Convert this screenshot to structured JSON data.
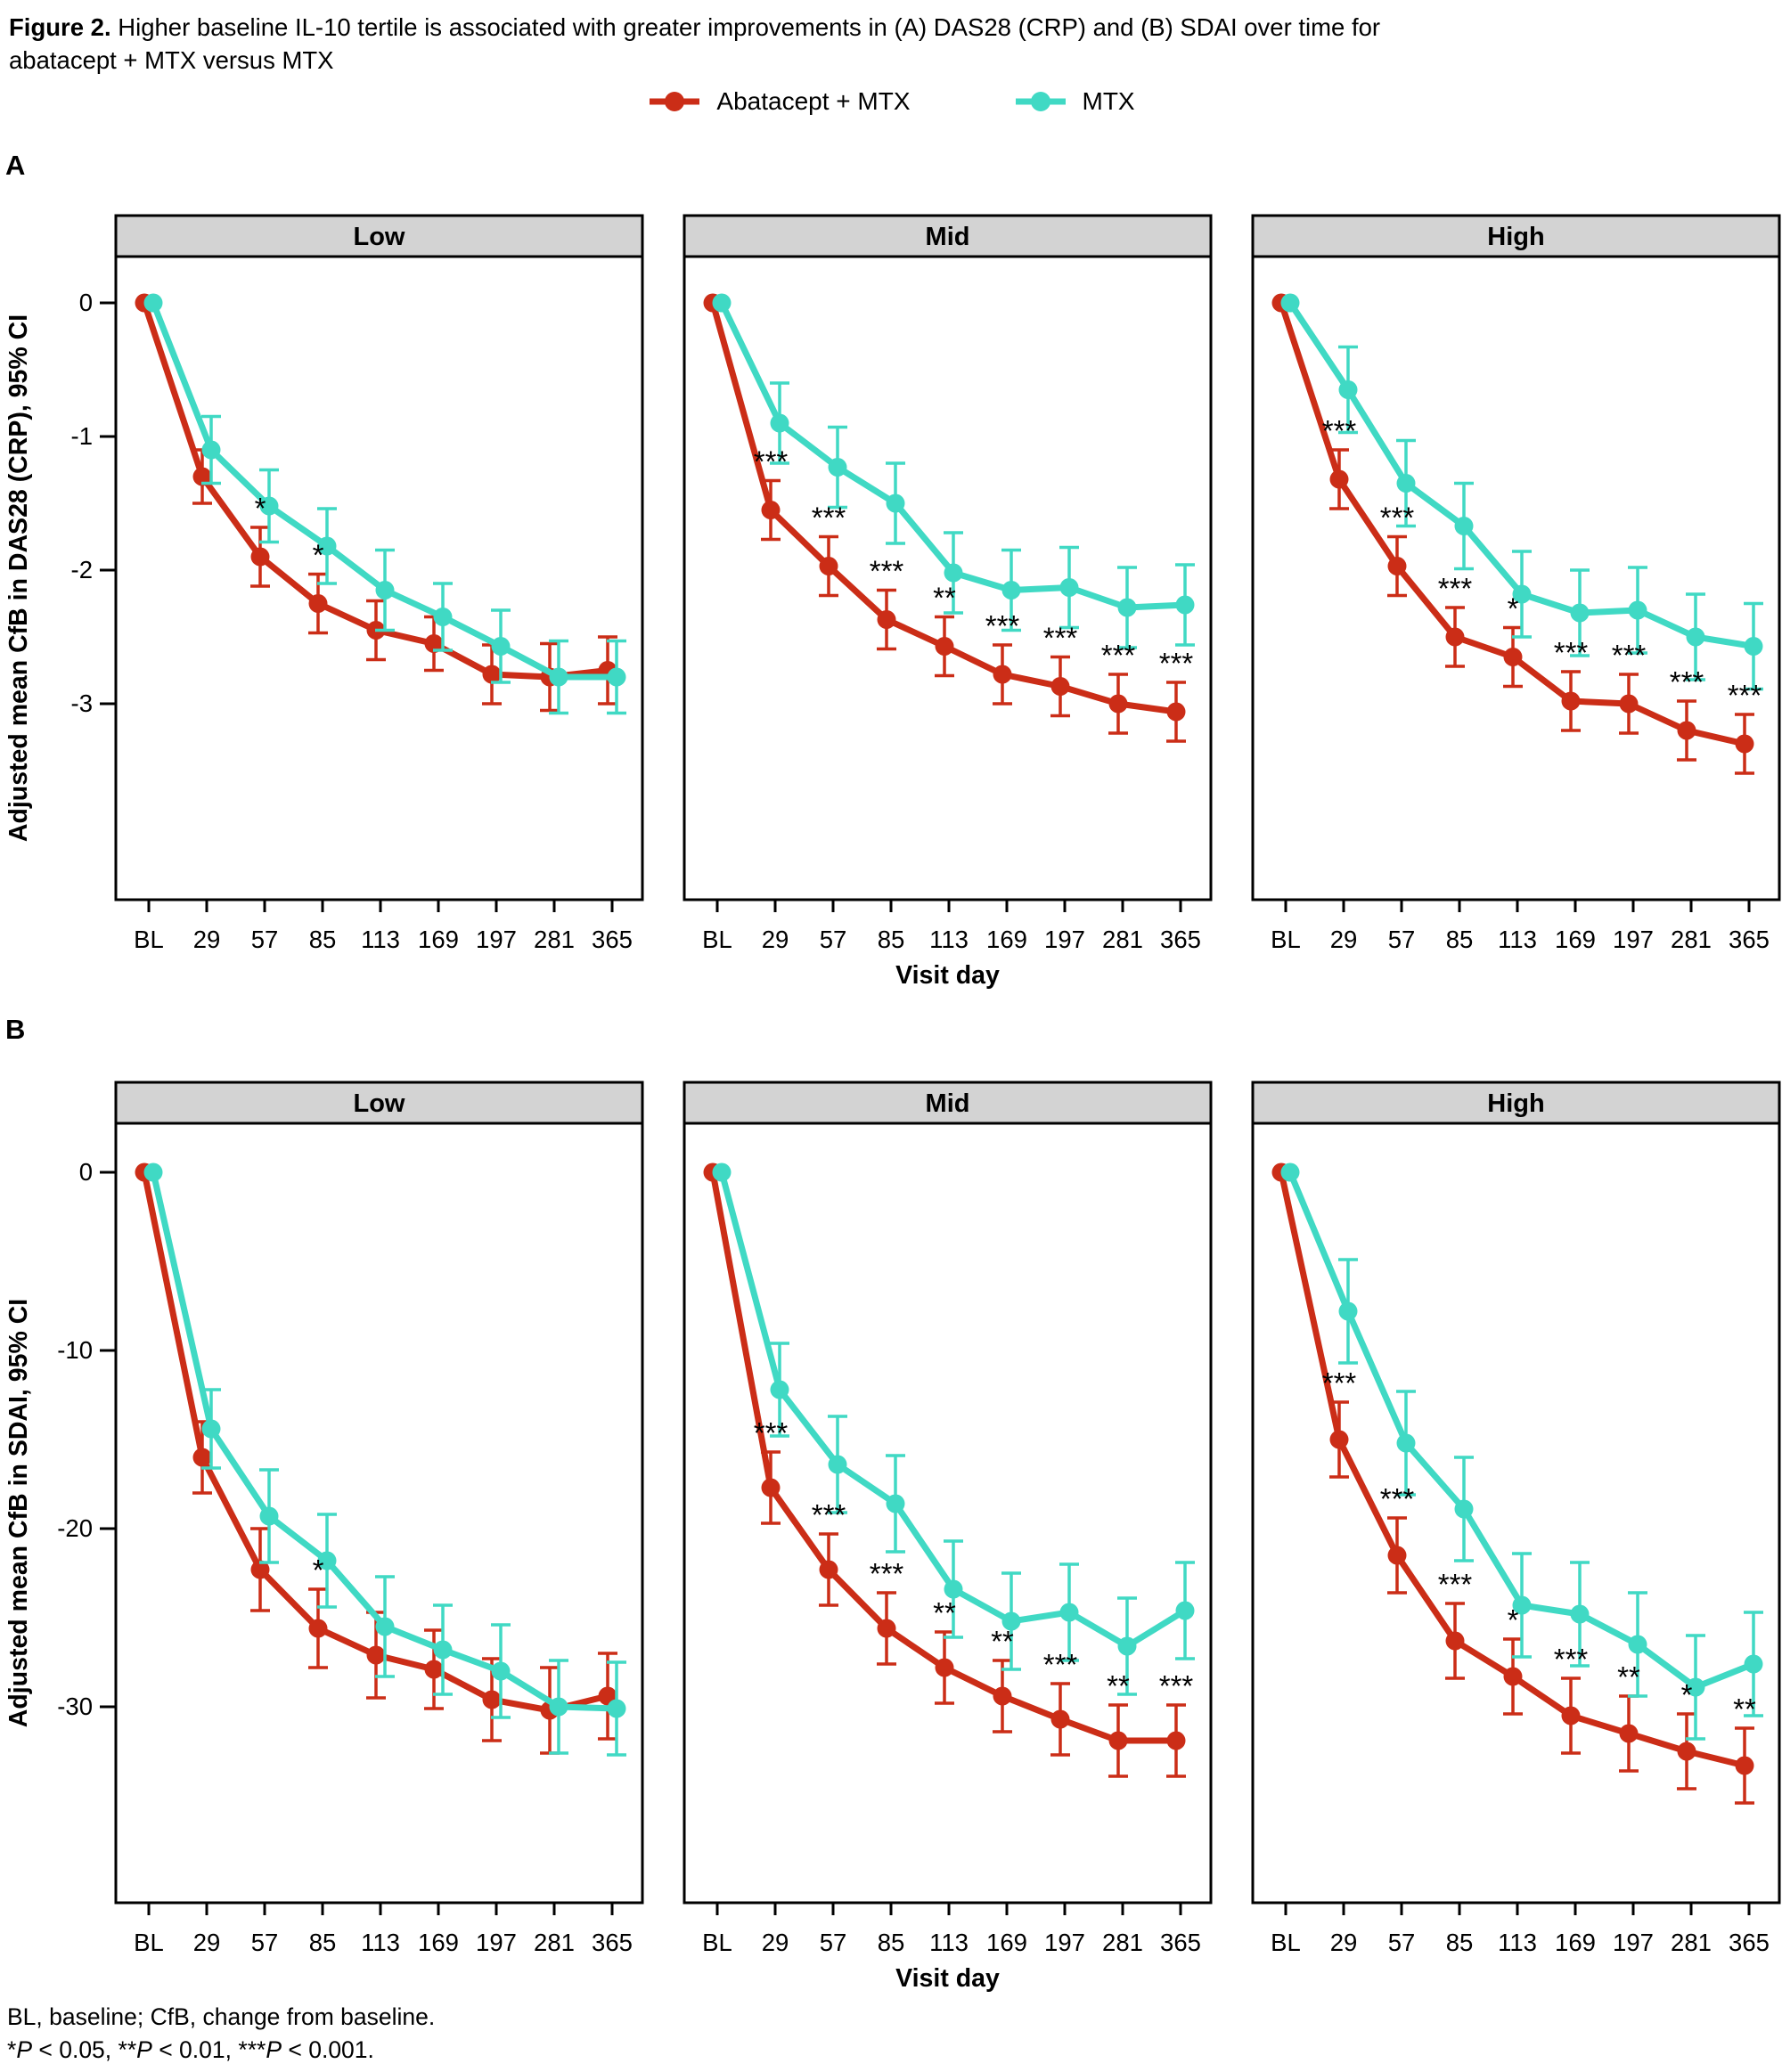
{
  "title": {
    "prefix": "Figure 2.",
    "text": " Higher baseline IL-10 tertile is associated with greater improvements in (A) DAS28 (CRP) and (B) SDAI over time for",
    "line2": "abatacept + MTX versus MTX"
  },
  "legend": {
    "items": [
      {
        "label": "Abatacept + MTX",
        "color": "#cb2d17"
      },
      {
        "label": "MTX",
        "color": "#40d9c4"
      }
    ]
  },
  "colors": {
    "abatacept": "#cb2d17",
    "mtx": "#40d9c4",
    "strip_fill": "#d3d3d3",
    "frame": "#000000"
  },
  "footnote": {
    "line1": "BL, baseline; CfB, change from baseline.",
    "line2_segments": [
      {
        "t": "*",
        "italic": false
      },
      {
        "t": "P",
        "italic": true
      },
      {
        "t": " < 0.05, ",
        "italic": false
      },
      {
        "t": "**",
        "italic": false
      },
      {
        "t": "P",
        "italic": true
      },
      {
        "t": " < 0.01, ",
        "italic": false
      },
      {
        "t": "***",
        "italic": false
      },
      {
        "t": "P",
        "italic": true
      },
      {
        "t": " < 0.001.",
        "italic": false
      }
    ]
  },
  "chart_data": [
    {
      "panel": "A",
      "type": "line",
      "ylabel": "Adjusted mean CfB in DAS28 (CRP), 95% CI",
      "xlabel": "Visit day",
      "categories": [
        "BL",
        "29",
        "57",
        "85",
        "113",
        "169",
        "197",
        "281",
        "365"
      ],
      "yticks": [
        0,
        -1,
        -2,
        -3
      ],
      "ylim": [
        0.35,
        -4.47
      ],
      "legend_position": "top",
      "grid": false,
      "facets": [
        {
          "title": "Low",
          "series": [
            {
              "name": "Abatacept + MTX",
              "values": [
                0,
                -1.3,
                -1.9,
                -2.25,
                -2.45,
                -2.55,
                -2.78,
                -2.8,
                -2.75
              ],
              "ci": [
                0,
                0.2,
                0.22,
                0.22,
                0.22,
                0.2,
                0.22,
                0.25,
                0.25
              ]
            },
            {
              "name": "MTX",
              "values": [
                0,
                -1.1,
                -1.52,
                -1.82,
                -2.15,
                -2.35,
                -2.57,
                -2.8,
                -2.8
              ],
              "ci": [
                0,
                0.25,
                0.27,
                0.28,
                0.3,
                0.25,
                0.27,
                0.27,
                0.27
              ]
            }
          ],
          "significance": [
            "",
            "",
            "*",
            "*",
            "",
            "",
            "",
            "",
            ""
          ]
        },
        {
          "title": "Mid",
          "series": [
            {
              "name": "Abatacept + MTX",
              "values": [
                0,
                -1.55,
                -1.97,
                -2.37,
                -2.57,
                -2.78,
                -2.87,
                -3.0,
                -3.06
              ],
              "ci": [
                0,
                0.22,
                0.22,
                0.22,
                0.22,
                0.22,
                0.22,
                0.22,
                0.22
              ]
            },
            {
              "name": "MTX",
              "values": [
                0,
                -0.9,
                -1.23,
                -1.5,
                -2.02,
                -2.15,
                -2.13,
                -2.28,
                -2.26
              ],
              "ci": [
                0,
                0.3,
                0.3,
                0.3,
                0.3,
                0.3,
                0.3,
                0.3,
                0.3
              ]
            }
          ],
          "significance": [
            "",
            "***",
            "***",
            "***",
            "**",
            "***",
            "***",
            "***",
            "***"
          ]
        },
        {
          "title": "High",
          "series": [
            {
              "name": "Abatacept + MTX",
              "values": [
                0,
                -1.32,
                -1.97,
                -2.5,
                -2.65,
                -2.98,
                -3.0,
                -3.2,
                -3.3
              ],
              "ci": [
                0,
                0.22,
                0.22,
                0.22,
                0.22,
                0.22,
                0.22,
                0.22,
                0.22
              ]
            },
            {
              "name": "MTX",
              "values": [
                0,
                -0.65,
                -1.35,
                -1.67,
                -2.18,
                -2.32,
                -2.3,
                -2.5,
                -2.57
              ],
              "ci": [
                0,
                0.32,
                0.32,
                0.32,
                0.32,
                0.32,
                0.32,
                0.32,
                0.32
              ]
            }
          ],
          "significance": [
            "",
            "***",
            "***",
            "***",
            "*",
            "***",
            "***",
            "***",
            "***"
          ]
        }
      ]
    },
    {
      "panel": "B",
      "type": "line",
      "ylabel": "Adjusted mean CfB in SDAI, 95% CI",
      "xlabel": "Visit day",
      "categories": [
        "BL",
        "29",
        "57",
        "85",
        "113",
        "169",
        "197",
        "281",
        "365"
      ],
      "yticks": [
        0,
        -10,
        -20,
        -30
      ],
      "ylim": [
        3.0,
        -41.0
      ],
      "legend_position": "top",
      "grid": false,
      "facets": [
        {
          "title": "Low",
          "series": [
            {
              "name": "Abatacept + MTX",
              "values": [
                0,
                -16,
                -22.3,
                -25.6,
                -27.1,
                -27.9,
                -29.6,
                -30.2,
                -29.4
              ],
              "ci": [
                0,
                2.0,
                2.3,
                2.2,
                2.4,
                2.2,
                2.3,
                2.4,
                2.4
              ]
            },
            {
              "name": "MTX",
              "values": [
                0,
                -14.4,
                -19.3,
                -21.8,
                -25.5,
                -26.8,
                -28.0,
                -30.0,
                -30.1
              ],
              "ci": [
                0,
                2.2,
                2.6,
                2.6,
                2.8,
                2.5,
                2.6,
                2.6,
                2.6
              ]
            }
          ],
          "significance": [
            "",
            "",
            "",
            "*",
            "",
            "",
            "",
            "",
            ""
          ]
        },
        {
          "title": "Mid",
          "series": [
            {
              "name": "Abatacept + MTX",
              "values": [
                0,
                -17.7,
                -22.3,
                -25.6,
                -27.8,
                -29.4,
                -30.7,
                -31.9,
                -31.9
              ],
              "ci": [
                0,
                2.0,
                2.0,
                2.0,
                2.0,
                2.0,
                2.0,
                2.0,
                2.0
              ]
            },
            {
              "name": "MTX",
              "values": [
                0,
                -12.2,
                -16.4,
                -18.6,
                -23.4,
                -25.2,
                -24.7,
                -26.6,
                -24.6
              ],
              "ci": [
                0,
                2.6,
                2.7,
                2.7,
                2.7,
                2.7,
                2.7,
                2.7,
                2.7
              ]
            }
          ],
          "significance": [
            "",
            "***",
            "***",
            "***",
            "**",
            "**",
            "***",
            "**",
            "***"
          ]
        },
        {
          "title": "High",
          "series": [
            {
              "name": "Abatacept + MTX",
              "values": [
                0,
                -15.0,
                -21.5,
                -26.3,
                -28.3,
                -30.5,
                -31.5,
                -32.5,
                -33.3
              ],
              "ci": [
                0,
                2.1,
                2.1,
                2.1,
                2.1,
                2.1,
                2.1,
                2.1,
                2.1
              ]
            },
            {
              "name": "MTX",
              "values": [
                0,
                -7.8,
                -15.2,
                -18.9,
                -24.3,
                -24.8,
                -26.5,
                -28.9,
                -27.6
              ],
              "ci": [
                0,
                2.9,
                2.9,
                2.9,
                2.9,
                2.9,
                2.9,
                2.9,
                2.9
              ]
            }
          ],
          "significance": [
            "",
            "***",
            "***",
            "***",
            "*",
            "***",
            "**",
            "*",
            "**"
          ]
        }
      ]
    }
  ]
}
